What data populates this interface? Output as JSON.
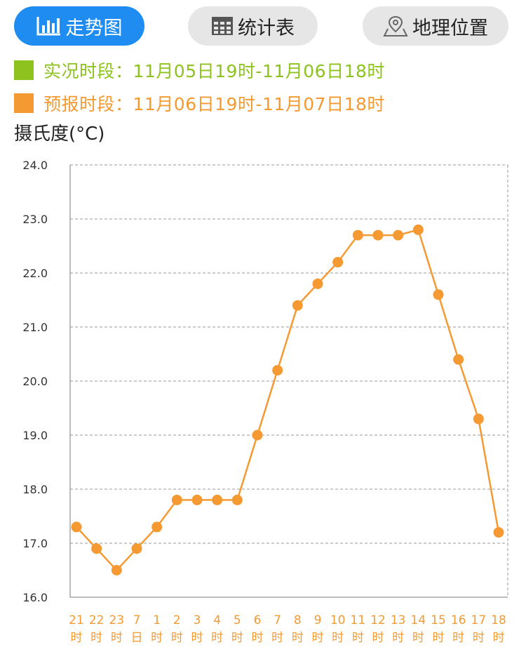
{
  "tabs": [
    {
      "label": "走势图",
      "icon": "bar-chart-icon",
      "active": true
    },
    {
      "label": "统计表",
      "icon": "grid-table-icon",
      "active": false
    },
    {
      "label": "地理位置",
      "icon": "map-pin-icon",
      "active": false
    }
  ],
  "legend": {
    "actual": "实况时段：11月05日19时-11月06日18时",
    "forecast": "预报时段：11月06日19时-11月07日18时"
  },
  "colors": {
    "accent": "#1e8cf0",
    "actual": "#8dc21f",
    "forecast": "#f59a32",
    "tab_inactive": "#e6e6e6",
    "grid": "#999999"
  },
  "chart_data": {
    "type": "line",
    "ylabel": "摄氏度(°C)",
    "ylim": [
      16.0,
      24.0
    ],
    "yticks": [
      "16.0",
      "17.0",
      "18.0",
      "19.0",
      "20.0",
      "21.0",
      "22.0",
      "23.0",
      "24.0"
    ],
    "grid": "horizontal-dashed",
    "categories": [
      {
        "top": "21",
        "bottom": "时"
      },
      {
        "top": "22",
        "bottom": "时"
      },
      {
        "top": "23",
        "bottom": "时"
      },
      {
        "top": "7",
        "bottom": "日"
      },
      {
        "top": "1",
        "bottom": "时"
      },
      {
        "top": "2",
        "bottom": "时"
      },
      {
        "top": "3",
        "bottom": "时"
      },
      {
        "top": "4",
        "bottom": "时"
      },
      {
        "top": "5",
        "bottom": "时"
      },
      {
        "top": "6",
        "bottom": "时"
      },
      {
        "top": "7",
        "bottom": "时"
      },
      {
        "top": "8",
        "bottom": "时"
      },
      {
        "top": "9",
        "bottom": "时"
      },
      {
        "top": "10",
        "bottom": "时"
      },
      {
        "top": "11",
        "bottom": "时"
      },
      {
        "top": "12",
        "bottom": "时"
      },
      {
        "top": "13",
        "bottom": "时"
      },
      {
        "top": "14",
        "bottom": "时"
      },
      {
        "top": "15",
        "bottom": "时"
      },
      {
        "top": "16",
        "bottom": "时"
      },
      {
        "top": "17",
        "bottom": "时"
      },
      {
        "top": "18",
        "bottom": "时"
      }
    ],
    "values": [
      17.3,
      16.9,
      16.5,
      16.9,
      17.3,
      17.8,
      17.8,
      17.8,
      17.8,
      19.0,
      20.2,
      21.4,
      21.8,
      22.2,
      22.7,
      22.7,
      22.7,
      22.8,
      21.6,
      20.4,
      19.3,
      17.2
    ]
  }
}
